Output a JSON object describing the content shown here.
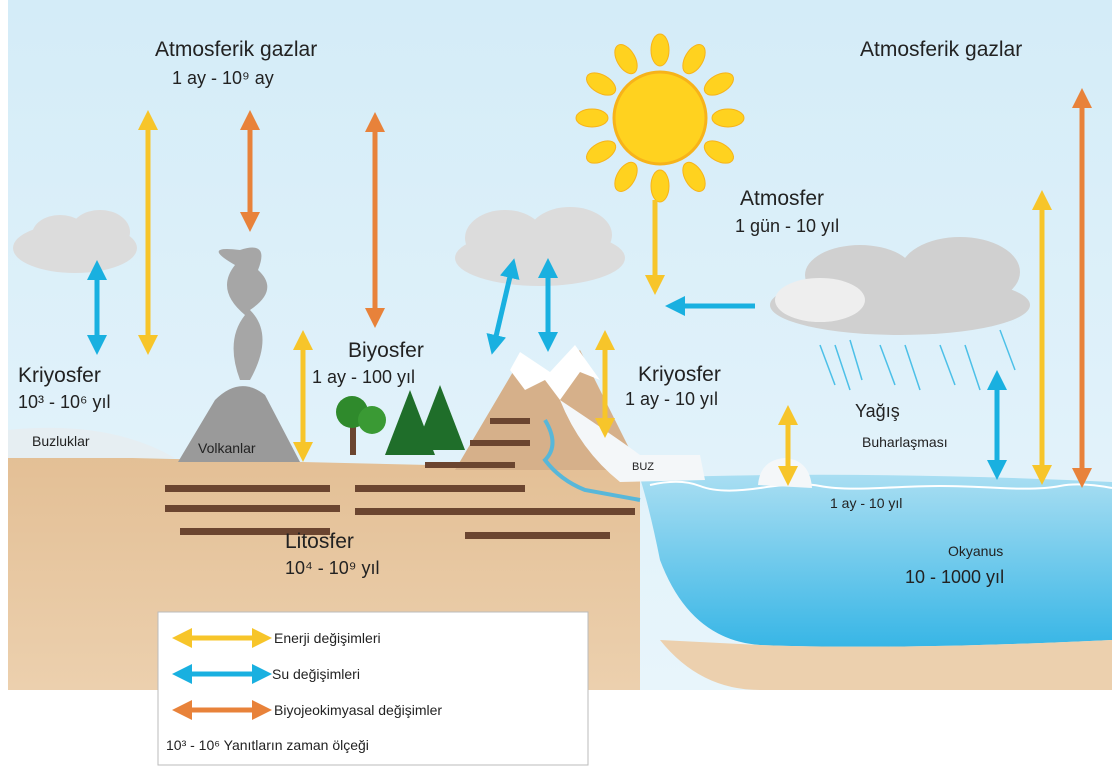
{
  "labels": {
    "atmospheric_gases_left": "Atmosferik gazlar",
    "atmospheric_gases_left_time": "1 ay - 10⁹ ay",
    "atmospheric_gases_right": "Atmosferik gazlar",
    "atmosphere": "Atmosfer",
    "atmosphere_time": "1 gün - 10 yıl",
    "cryosphere_left": "Kriyosfer",
    "cryosphere_left_time": "10³ - 10⁶ yıl",
    "biosphere": "Biyosfer",
    "biosphere_time": "1 ay - 100 yıl",
    "cryosphere_right": "Kriyosfer",
    "cryosphere_right_time": "1 ay - 10 yıl",
    "glaciers": "Buzluklar",
    "volcanoes": "Volkanlar",
    "ice": "BUZ",
    "precipitation": "Yağış",
    "evaporation": "Buharlaşması",
    "ocean_surface_time": "1 ay - 10 yıl",
    "ocean": "Okyanus",
    "ocean_time": "10 - 1000 yıl",
    "lithosphere": "Litosfer",
    "lithosphere_time": "10⁴ - 10⁹ yıl"
  },
  "legend": {
    "items": [
      "Enerji değişimleri",
      "Su değişimleri",
      "Biyojeokimyasal değişimler"
    ],
    "scale_note": "10³ - 10⁶ Yanıtların zaman ölçeği"
  }
}
